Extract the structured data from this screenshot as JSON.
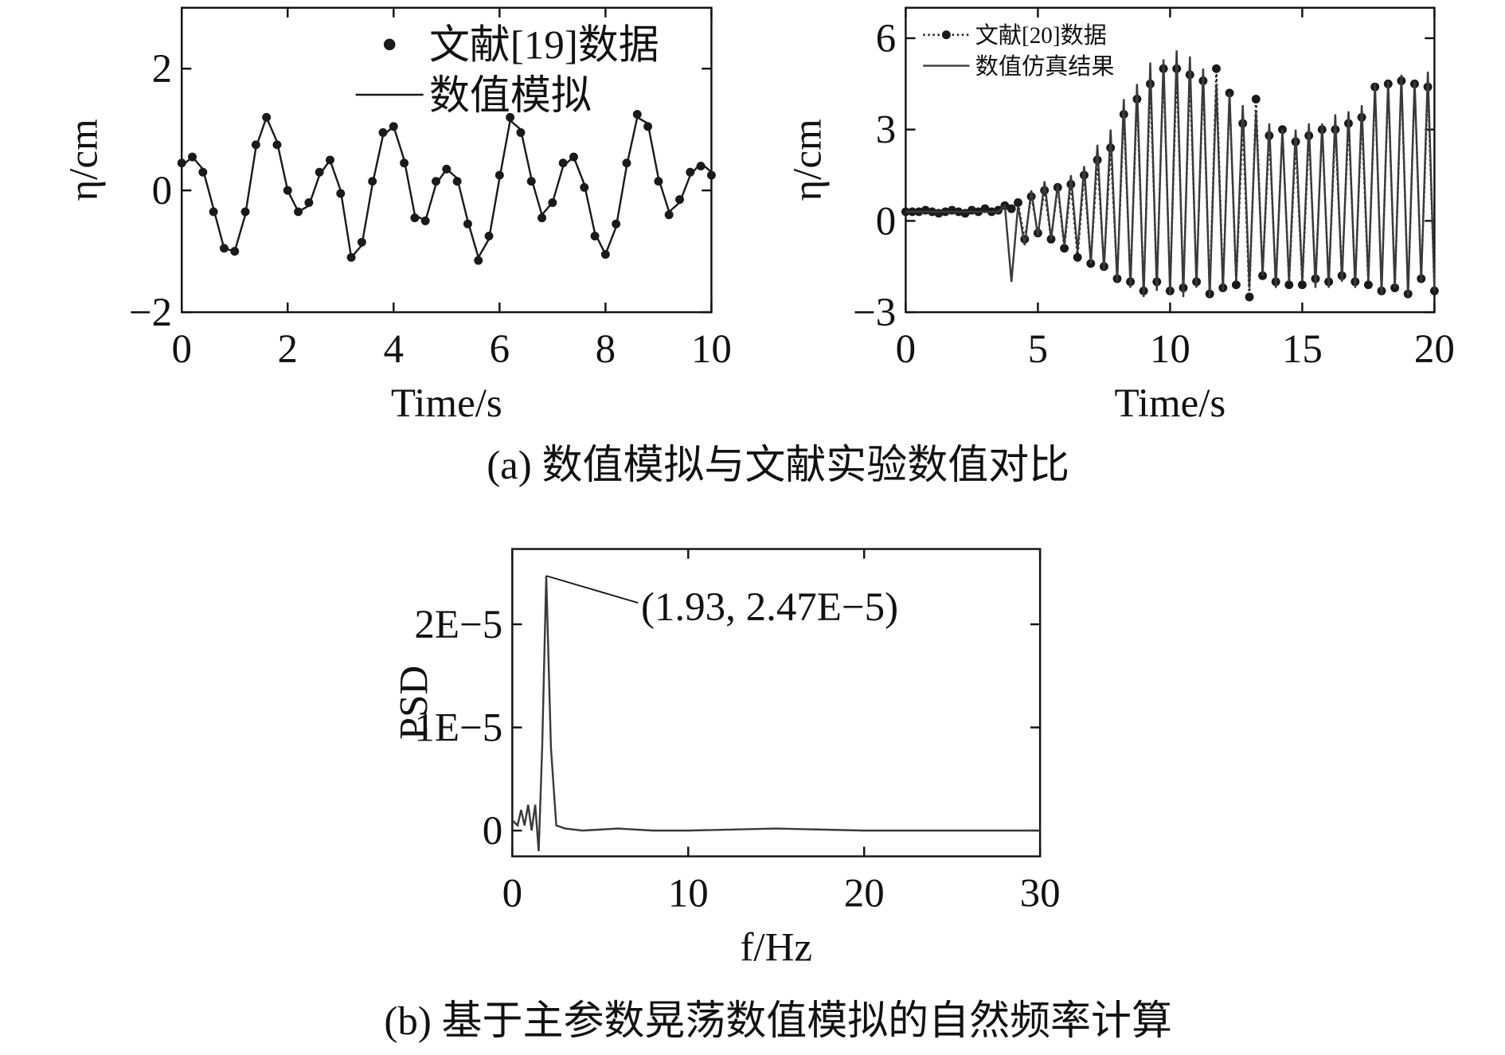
{
  "chart_data": [
    {
      "type": "line",
      "xlabel": "Time/s",
      "ylabel": "η/cm",
      "xlim": [
        0,
        10
      ],
      "ylim": [
        -2,
        3
      ],
      "xticks": [
        0,
        2,
        4,
        6,
        8,
        10
      ],
      "yticks": [
        {
          "value": -2,
          "label": "−2"
        },
        0,
        2
      ],
      "legend": "upper center",
      "x": [
        0,
        0.2,
        0.4,
        0.6,
        0.8,
        1.0,
        1.2,
        1.4,
        1.6,
        1.8,
        2.0,
        2.2,
        2.4,
        2.6,
        2.8,
        3.0,
        3.2,
        3.4,
        3.6,
        3.8,
        4.0,
        4.2,
        4.4,
        4.6,
        4.8,
        5.0,
        5.2,
        5.4,
        5.6,
        5.8,
        6.0,
        6.2,
        6.4,
        6.6,
        6.8,
        7.0,
        7.2,
        7.4,
        7.6,
        7.8,
        8.0,
        8.2,
        8.4,
        8.6,
        8.8,
        9.0,
        9.2,
        9.4,
        9.6,
        9.8,
        10.0
      ],
      "series": [
        {
          "name": "文献[19]数据",
          "color": "#1a1a1a",
          "marker": true,
          "line": false,
          "values": [
            0.45,
            0.55,
            0.3,
            -0.35,
            -0.95,
            -1.0,
            -0.35,
            0.75,
            1.2,
            0.75,
            0.0,
            -0.35,
            -0.2,
            0.3,
            0.5,
            -0.05,
            -1.1,
            -0.85,
            0.15,
            0.95,
            1.05,
            0.45,
            -0.45,
            -0.5,
            0.15,
            0.35,
            0.15,
            -0.55,
            -1.15,
            -0.75,
            0.25,
            1.2,
            0.95,
            0.15,
            -0.45,
            -0.2,
            0.45,
            0.55,
            0.05,
            -0.75,
            -1.05,
            -0.55,
            0.45,
            1.25,
            1.05,
            0.15,
            -0.4,
            -0.15,
            0.3,
            0.4,
            0.25
          ]
        },
        {
          "name": "数值模拟",
          "color": "#1a1a1a",
          "marker": false,
          "line": true,
          "dash": "solid",
          "values": [
            0.4,
            0.55,
            0.35,
            -0.3,
            -0.95,
            -1.0,
            -0.4,
            0.7,
            1.2,
            0.8,
            0.0,
            -0.35,
            -0.25,
            0.25,
            0.5,
            0.0,
            -1.1,
            -0.9,
            0.1,
            0.9,
            1.05,
            0.5,
            -0.4,
            -0.5,
            0.1,
            0.35,
            0.2,
            -0.5,
            -1.1,
            -0.8,
            0.2,
            1.15,
            1.0,
            0.2,
            -0.4,
            -0.2,
            0.4,
            0.55,
            0.1,
            -0.7,
            -1.05,
            -0.6,
            0.4,
            1.2,
            1.1,
            0.2,
            -0.35,
            -0.2,
            0.25,
            0.45,
            0.3
          ]
        }
      ]
    },
    {
      "type": "line",
      "xlabel": "Time/s",
      "ylabel": "η/cm",
      "xlim": [
        0,
        20
      ],
      "ylim": [
        -3,
        7
      ],
      "xticks": [
        0,
        5,
        10,
        15,
        20
      ],
      "yticks": [
        {
          "value": -3,
          "label": "−3"
        },
        0,
        3,
        6
      ],
      "legend": "upper left",
      "x": [
        0,
        0.25,
        0.5,
        0.75,
        1,
        1.25,
        1.5,
        1.75,
        2,
        2.25,
        2.5,
        2.75,
        3,
        3.25,
        3.5,
        3.75,
        4,
        4.25,
        4.5,
        4.75,
        5,
        5.25,
        5.5,
        5.75,
        6,
        6.25,
        6.5,
        6.75,
        7,
        7.25,
        7.5,
        7.75,
        8,
        8.25,
        8.5,
        8.75,
        9,
        9.25,
        9.5,
        9.75,
        10,
        10.25,
        10.5,
        10.75,
        11,
        11.25,
        11.5,
        11.75,
        12,
        12.25,
        12.5,
        12.75,
        13,
        13.25,
        13.5,
        13.75,
        14,
        14.25,
        14.5,
        14.75,
        15,
        15.25,
        15.5,
        15.75,
        16,
        16.25,
        16.5,
        16.75,
        17,
        17.25,
        17.5,
        17.75,
        18,
        18.25,
        18.5,
        18.75,
        19,
        19.25,
        19.5,
        19.75,
        20
      ],
      "series": [
        {
          "name": "文献[20]数据",
          "color": "#1a1a1a",
          "marker": true,
          "line": true,
          "dash": "dotted",
          "values": [
            0.3,
            0.3,
            0.3,
            0.35,
            0.3,
            0.25,
            0.3,
            0.35,
            0.3,
            0.25,
            0.35,
            0.3,
            0.4,
            0.3,
            0.35,
            0.5,
            0.4,
            0.6,
            -0.6,
            0.8,
            -0.4,
            1.0,
            -0.6,
            1.1,
            -0.9,
            1.2,
            -1.2,
            1.5,
            -1.4,
            2.0,
            -1.5,
            2.4,
            -1.9,
            3.5,
            -2.0,
            4.0,
            -2.3,
            4.5,
            -2.0,
            5.0,
            -2.3,
            5.0,
            -2.2,
            4.8,
            -2.0,
            4.6,
            -2.4,
            5.0,
            -2.2,
            4.2,
            -2.1,
            3.2,
            -2.5,
            4.0,
            -1.8,
            2.8,
            -2.0,
            3.0,
            -2.1,
            2.6,
            -2.1,
            2.8,
            -1.9,
            3.0,
            -2.0,
            3.0,
            -1.8,
            3.2,
            -2.0,
            3.4,
            -2.1,
            4.4,
            -2.3,
            4.5,
            -2.2,
            4.6,
            -2.4,
            4.5,
            -1.9,
            4.4,
            -2.3
          ]
        },
        {
          "name": "数值仿真结果",
          "color": "#3a3a3a",
          "marker": false,
          "line": true,
          "dash": "solid",
          "values": [
            0.3,
            0.3,
            0.3,
            0.3,
            0.3,
            0.3,
            0.3,
            0.3,
            0.3,
            0.3,
            0.3,
            0.3,
            0.3,
            0.3,
            0.3,
            0.5,
            -2.0,
            0.5,
            -0.8,
            1.0,
            -0.5,
            1.3,
            -0.6,
            1.2,
            -0.8,
            1.5,
            -1.0,
            1.8,
            -1.4,
            2.5,
            -1.6,
            3.0,
            -2.0,
            4.0,
            -2.2,
            4.5,
            -2.5,
            5.2,
            -2.3,
            5.3,
            -2.4,
            5.6,
            -2.5,
            5.4,
            -2.2,
            5.0,
            -2.5,
            4.5,
            -2.3,
            4.2,
            -2.0,
            3.8,
            -2.2,
            3.6,
            -1.8,
            3.2,
            -2.2,
            3.0,
            -2.0,
            3.0,
            -2.0,
            3.2,
            -2.2,
            3.2,
            -2.2,
            3.5,
            -2.0,
            3.6,
            -2.2,
            3.8,
            -2.0,
            4.5,
            -2.4,
            4.6,
            -2.2,
            4.8,
            -2.5,
            4.6,
            -2.0,
            4.9,
            -2.3
          ]
        }
      ]
    },
    {
      "type": "line",
      "xlabel": "f/Hz",
      "ylabel": "PSD",
      "xlim": [
        0,
        30
      ],
      "ylim": [
        -2.5e-06,
        2.73e-05
      ],
      "xticks": [
        0,
        10,
        20,
        30
      ],
      "yticks": [
        0,
        {
          "value": 1e-05,
          "label": "1E−5"
        },
        {
          "value": 2e-05,
          "label": "2E−5"
        }
      ],
      "x": [
        0,
        0.3,
        0.5,
        0.7,
        0.9,
        1.1,
        1.3,
        1.5,
        1.7,
        1.93,
        2.2,
        2.5,
        3,
        4,
        5,
        6,
        8,
        10,
        15,
        20,
        25,
        30
      ],
      "series": [
        {
          "color": "#3a3a3a",
          "marker": false,
          "line": true,
          "dash": "solid",
          "values": [
            1e-06,
            5e-07,
            2e-06,
            5e-07,
            2.5e-06,
            0.0,
            2.5e-06,
            -2e-06,
            8e-06,
            2.47e-05,
            8e-06,
            5e-07,
            2e-07,
            0.0,
            1e-07,
            2e-07,
            0.0,
            0.0,
            2e-07,
            0.0,
            0.0,
            0.0
          ]
        }
      ],
      "annotation": {
        "text": "(1.93, 2.47E−5)",
        "x": 1.93,
        "y": 2.47e-05
      }
    }
  ],
  "captions": [
    "(a) 数值模拟与文献实验数值对比",
    "(b) 基于主参数晃荡数值模拟的自然频率计算"
  ]
}
